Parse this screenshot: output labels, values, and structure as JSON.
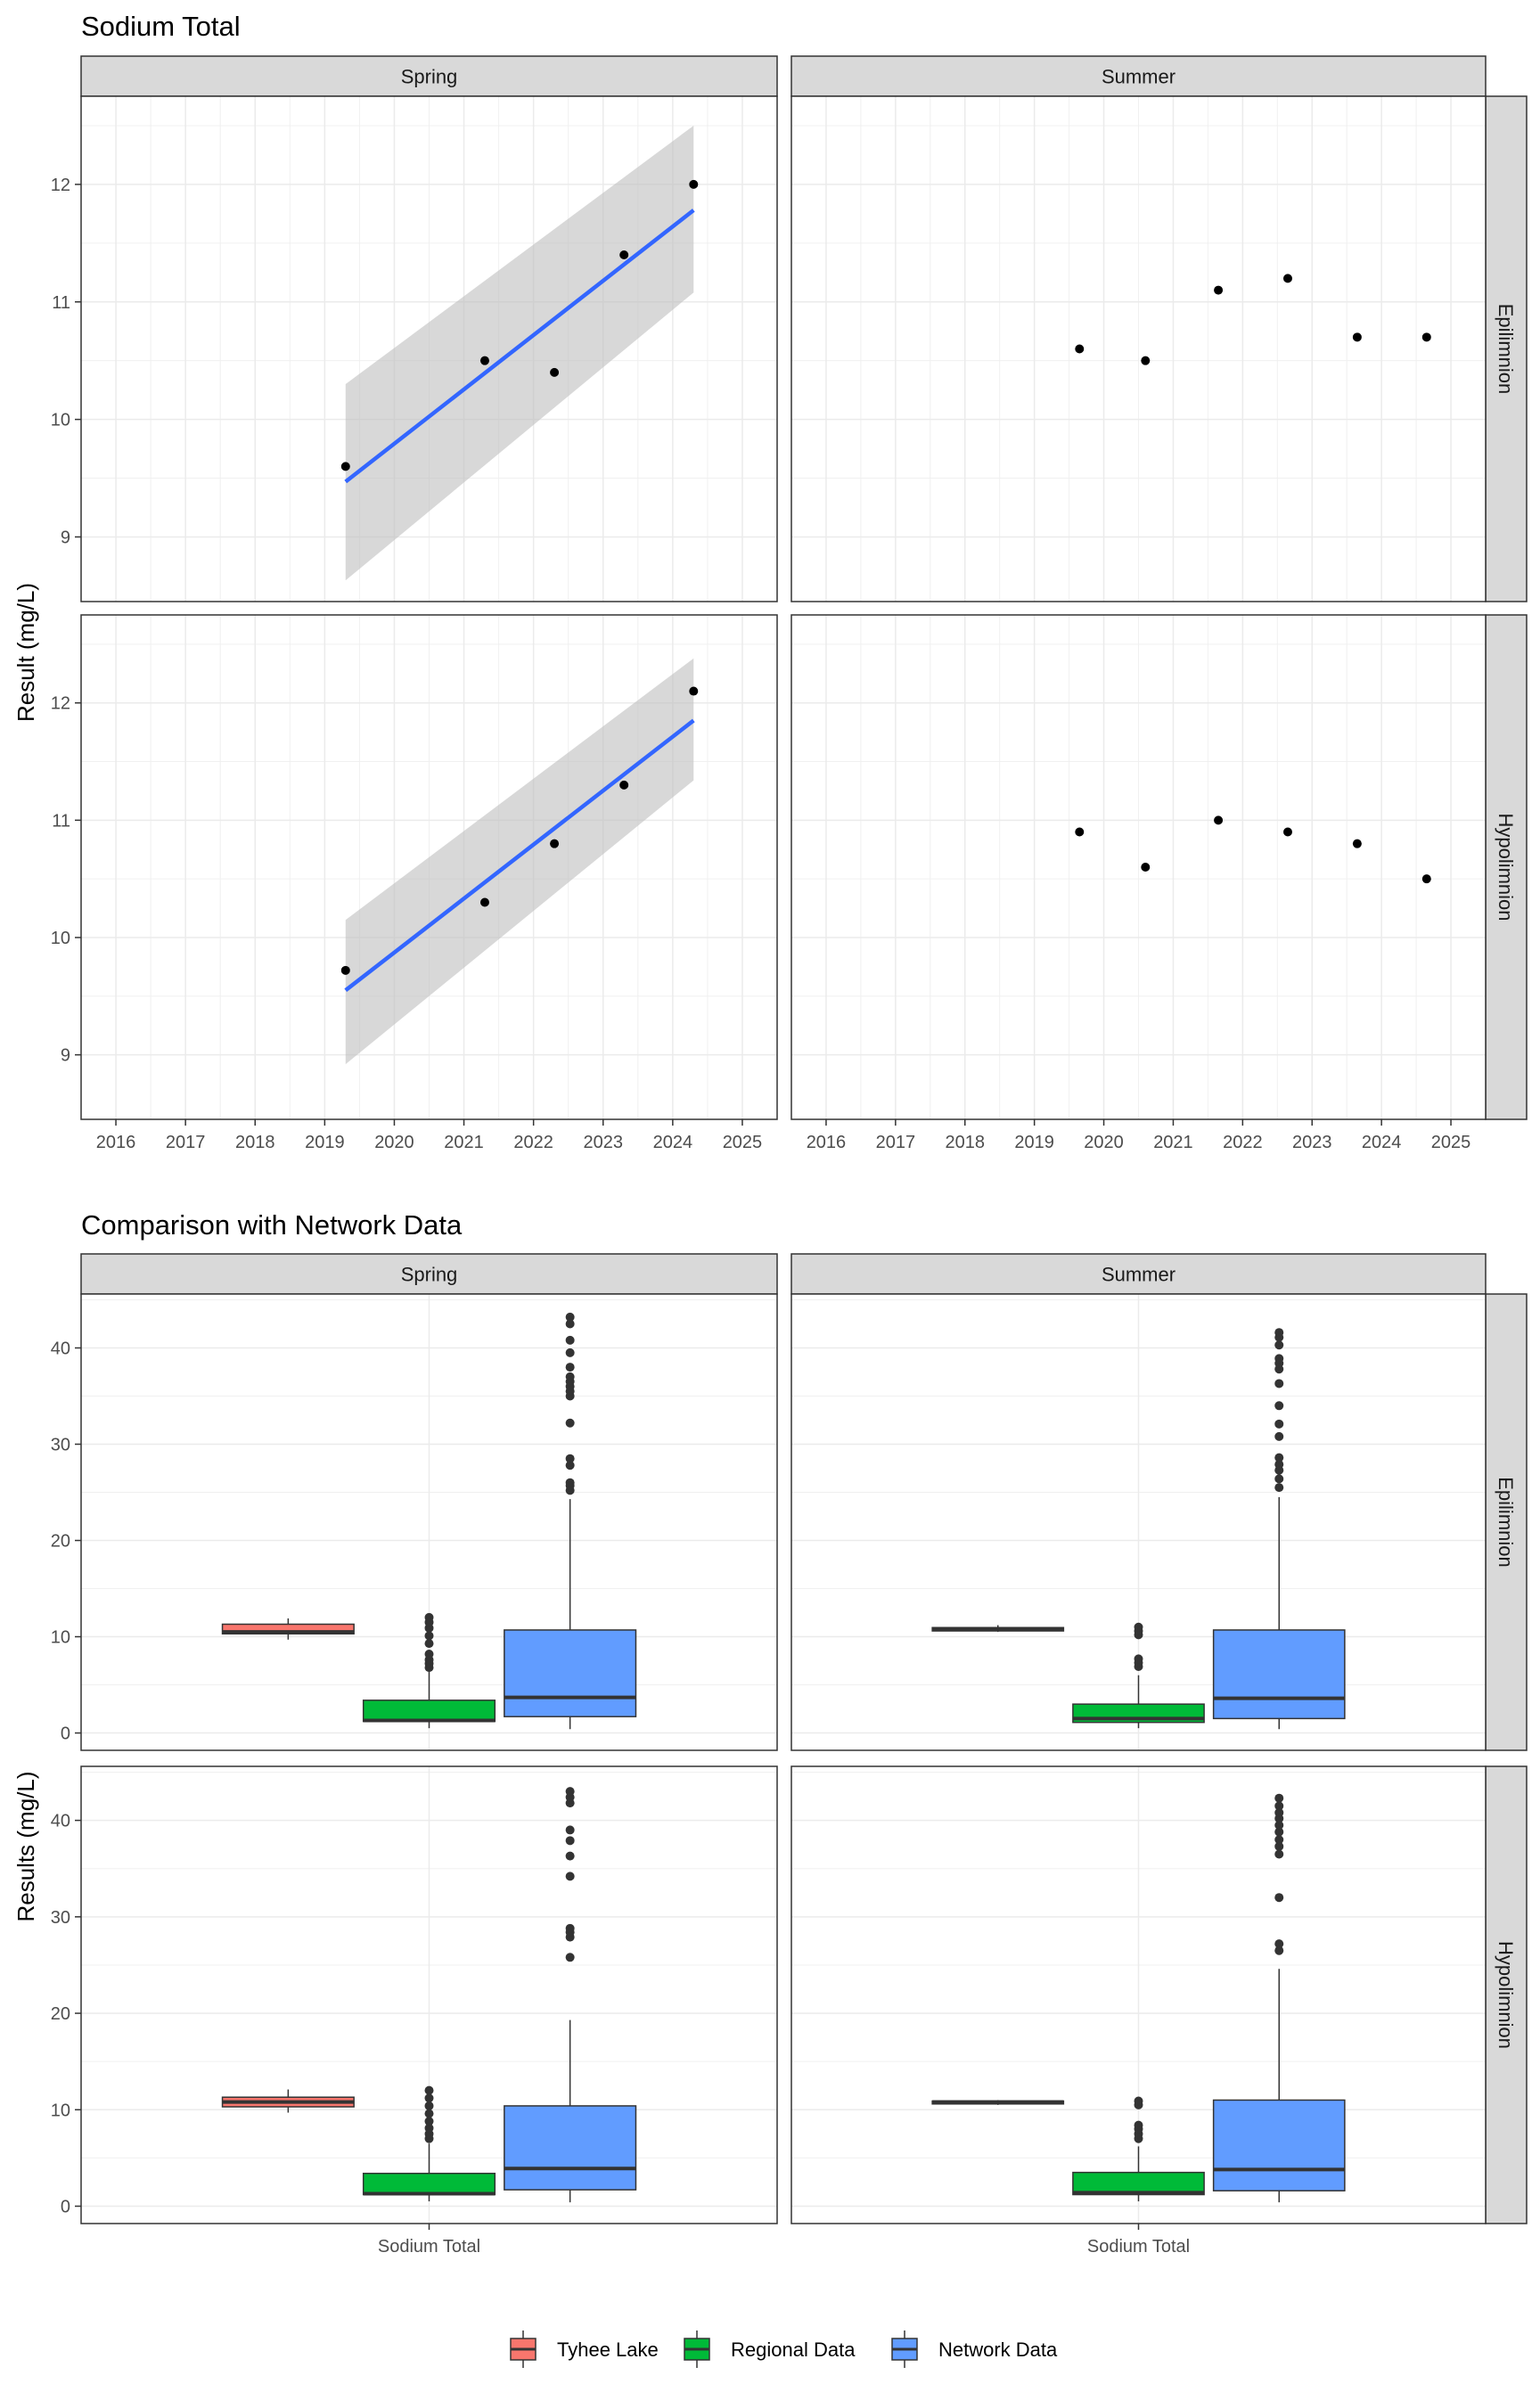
{
  "chart_data": [
    {
      "type": "scatter",
      "title": "Sodium Total",
      "ylabel": "Result (mg/L)",
      "xlabel": "",
      "column_facets": [
        "Spring",
        "Summer"
      ],
      "row_facets": [
        "Epilimnion",
        "Hypolimnion"
      ],
      "x_ticks": [
        "2016",
        "2017",
        "2018",
        "2019",
        "2020",
        "2021",
        "2022",
        "2023",
        "2024",
        "2025"
      ],
      "y_ticks": [
        "9",
        "10",
        "11",
        "12"
      ],
      "xlim": [
        2015.5,
        2025.5
      ],
      "ylim": [
        8.45,
        12.75
      ],
      "grid": true,
      "panels": [
        {
          "col": "Spring",
          "row": "Epilimnion",
          "points": [
            {
              "x": 2019.3,
              "y": 9.6
            },
            {
              "x": 2021.3,
              "y": 10.5
            },
            {
              "x": 2022.3,
              "y": 10.4
            },
            {
              "x": 2023.3,
              "y": 11.4
            },
            {
              "x": 2024.3,
              "y": 12.0
            }
          ],
          "trend": {
            "x": [
              2019.3,
              2024.3
            ],
            "y": [
              9.47,
              11.78
            ],
            "ci_lower": [
              8.63,
              11.08
            ],
            "ci_upper": [
              10.3,
              12.5
            ]
          }
        },
        {
          "col": "Summer",
          "row": "Epilimnion",
          "points": [
            {
              "x": 2019.65,
              "y": 10.6
            },
            {
              "x": 2020.6,
              "y": 10.5
            },
            {
              "x": 2021.65,
              "y": 11.1
            },
            {
              "x": 2022.65,
              "y": 11.2
            },
            {
              "x": 2023.65,
              "y": 10.7
            },
            {
              "x": 2024.65,
              "y": 10.7
            }
          ]
        },
        {
          "col": "Spring",
          "row": "Hypolimnion",
          "points": [
            {
              "x": 2019.3,
              "y": 9.72
            },
            {
              "x": 2021.3,
              "y": 10.3
            },
            {
              "x": 2022.3,
              "y": 10.8
            },
            {
              "x": 2023.3,
              "y": 11.3
            },
            {
              "x": 2024.3,
              "y": 12.1
            }
          ],
          "trend": {
            "x": [
              2019.3,
              2024.3
            ],
            "y": [
              9.55,
              11.85
            ],
            "ci_lower": [
              8.92,
              11.34
            ],
            "ci_upper": [
              10.15,
              12.38
            ]
          }
        },
        {
          "col": "Summer",
          "row": "Hypolimnion",
          "points": [
            {
              "x": 2019.65,
              "y": 10.9
            },
            {
              "x": 2020.6,
              "y": 10.6
            },
            {
              "x": 2021.65,
              "y": 11.0
            },
            {
              "x": 2022.65,
              "y": 10.9
            },
            {
              "x": 2023.65,
              "y": 10.8
            },
            {
              "x": 2024.65,
              "y": 10.5
            }
          ]
        }
      ],
      "colors": {
        "trend": "#3366ff",
        "ribbon": "#bebebe",
        "points": "#000000"
      }
    },
    {
      "type": "box",
      "title": "Comparison with Network Data",
      "ylabel": "Results (mg/L)",
      "x_tick": "Sodium Total",
      "column_facets": [
        "Spring",
        "Summer"
      ],
      "row_facets": [
        "Epilimnion",
        "Hypolimnion"
      ],
      "y_ticks": [
        "0",
        "10",
        "20",
        "30",
        "40"
      ],
      "ylim": [
        -1.8,
        45.6
      ],
      "grid": true,
      "legend": {
        "placement": "bottom",
        "entries": [
          "Tyhee Lake",
          "Regional Data",
          "Network Data"
        ]
      },
      "colors": {
        "Tyhee Lake": "#f8766d",
        "Regional Data": "#00ba38",
        "Network Data": "#619cff"
      },
      "panels": [
        {
          "col": "Spring",
          "row": "Epilimnion",
          "boxes": [
            {
              "group": "Tyhee Lake",
              "min": 9.7,
              "q1": 10.3,
              "median": 10.5,
              "q3": 11.3,
              "max": 11.9,
              "outliers": []
            },
            {
              "group": "Regional Data",
              "min": 0.5,
              "q1": 1.2,
              "median": 1.3,
              "q3": 3.4,
              "max": 6.5,
              "outliers": [
                6.8,
                7.2,
                7.6,
                8.2,
                9.3,
                10.1,
                10.9,
                11.5,
                12.0
              ]
            },
            {
              "group": "Network Data",
              "min": 0.4,
              "q1": 1.7,
              "median": 3.7,
              "q3": 10.7,
              "max": 24.3,
              "outliers": [
                25.2,
                25.7,
                26.0,
                27.8,
                28.5,
                32.2,
                35.0,
                35.5,
                36.0,
                36.5,
                37.0,
                38.0,
                39.5,
                40.8,
                42.5,
                43.2
              ]
            }
          ]
        },
        {
          "col": "Summer",
          "row": "Epilimnion",
          "boxes": [
            {
              "group": "Tyhee Lake",
              "min": 10.5,
              "q1": 10.6,
              "median": 10.75,
              "q3": 10.95,
              "max": 11.2,
              "outliers": []
            },
            {
              "group": "Regional Data",
              "min": 0.5,
              "q1": 1.1,
              "median": 1.5,
              "q3": 3.0,
              "max": 6.0,
              "outliers": [
                6.9,
                7.3,
                7.7,
                10.2,
                10.6,
                11.0
              ]
            },
            {
              "group": "Network Data",
              "min": 0.4,
              "q1": 1.5,
              "median": 3.6,
              "q3": 10.7,
              "max": 24.5,
              "outliers": [
                25.5,
                26.4,
                27.3,
                27.9,
                28.6,
                30.8,
                32.1,
                34.0,
                36.3,
                37.8,
                38.4,
                38.9,
                40.3,
                41.1,
                41.6
              ]
            }
          ]
        },
        {
          "col": "Spring",
          "row": "Hypolimnion",
          "boxes": [
            {
              "group": "Tyhee Lake",
              "min": 9.7,
              "q1": 10.3,
              "median": 10.8,
              "q3": 11.3,
              "max": 12.1,
              "outliers": []
            },
            {
              "group": "Regional Data",
              "min": 0.5,
              "q1": 1.2,
              "median": 1.3,
              "q3": 3.4,
              "max": 6.5,
              "outliers": [
                7.0,
                7.5,
                8.1,
                8.8,
                9.6,
                10.4,
                11.2,
                12.0
              ]
            },
            {
              "group": "Network Data",
              "min": 0.4,
              "q1": 1.7,
              "median": 3.9,
              "q3": 10.4,
              "max": 19.3,
              "outliers": [
                25.8,
                27.9,
                28.4,
                28.8,
                34.2,
                36.3,
                37.9,
                39.0,
                41.8,
                42.4,
                43.0
              ]
            }
          ]
        },
        {
          "col": "Summer",
          "row": "Hypolimnion",
          "boxes": [
            {
              "group": "Tyhee Lake",
              "min": 10.5,
              "q1": 10.6,
              "median": 10.8,
              "q3": 10.9,
              "max": 11.0,
              "outliers": []
            },
            {
              "group": "Regional Data",
              "min": 0.5,
              "q1": 1.2,
              "median": 1.4,
              "q3": 3.5,
              "max": 6.2,
              "outliers": [
                7.0,
                7.5,
                8.0,
                8.4,
                10.5,
                10.9
              ]
            },
            {
              "group": "Network Data",
              "min": 0.4,
              "q1": 1.6,
              "median": 3.8,
              "q3": 11.0,
              "max": 24.6,
              "outliers": [
                26.5,
                27.2,
                32.0,
                36.5,
                37.3,
                38.0,
                38.8,
                39.5,
                40.2,
                40.8,
                41.5,
                42.3
              ]
            }
          ]
        }
      ]
    }
  ]
}
